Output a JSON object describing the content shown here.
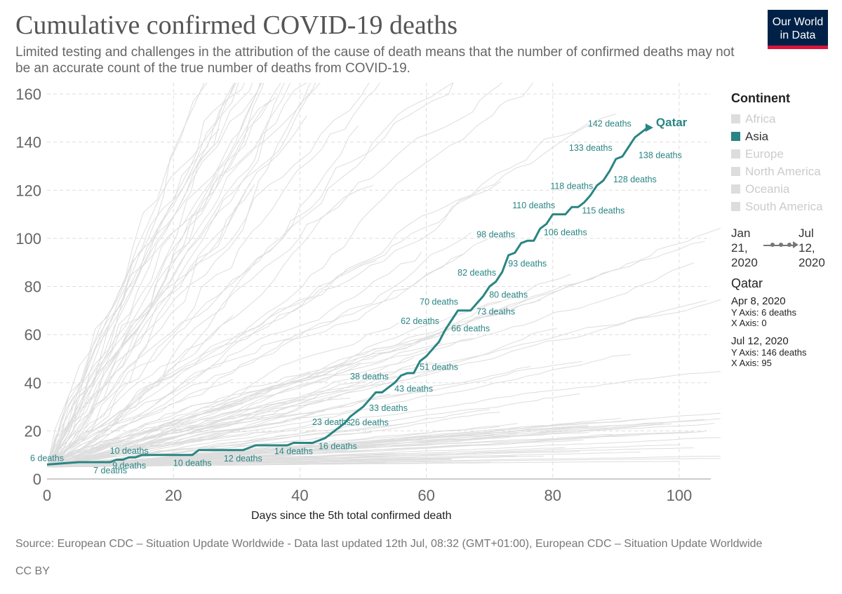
{
  "header": {
    "title": "Cumulative confirmed COVID-19 deaths",
    "subtitle": "Limited testing and challenges in the attribution of the cause of death means that the number of confirmed deaths may not be an accurate count of the true number of deaths from COVID-19.",
    "logo_line1": "Our World",
    "logo_line2": "in Data"
  },
  "legend": {
    "title": "Continent",
    "items": [
      {
        "label": "Africa",
        "active": false
      },
      {
        "label": "Asia",
        "active": true
      },
      {
        "label": "Europe",
        "active": false
      },
      {
        "label": "North America",
        "active": false
      },
      {
        "label": "Oceania",
        "active": false
      },
      {
        "label": "South America",
        "active": false
      }
    ]
  },
  "timeline": {
    "start_line1": "Jan",
    "start_line2": "21,",
    "start_line3": "2020",
    "end_line1": "Jul",
    "end_line2": "12,",
    "end_line3": "2020"
  },
  "info": {
    "entity": "Qatar",
    "first": {
      "date": "Apr 8, 2020",
      "y": "Y Axis: 6 deaths",
      "x": "X Axis: 0"
    },
    "last": {
      "date": "Jul 12, 2020",
      "y": "Y Axis: 146 deaths",
      "x": "X Axis: 95"
    }
  },
  "footer": {
    "source": "Source: European CDC – Situation Update Worldwide - Data last updated 12th Jul, 08:32 (GMT+01:00), European CDC – Situation Update Worldwide",
    "license": "CC BY"
  },
  "colors": {
    "highlight": "#2a8583",
    "background_lines": "#dddddd",
    "grid": "#dddddd",
    "axis_text": "#666666"
  },
  "chart_data": {
    "type": "line",
    "xlabel": "Days since the 5th total confirmed death",
    "ylabel": "",
    "xlim": [
      0,
      105
    ],
    "ylim": [
      0,
      160
    ],
    "x_ticks": [
      0,
      20,
      40,
      60,
      80,
      100
    ],
    "y_ticks": [
      0,
      20,
      40,
      60,
      80,
      100,
      120,
      140,
      160
    ],
    "grid": true,
    "legend_position": "right",
    "highlight_series": {
      "name": "Qatar",
      "points": [
        [
          0,
          6
        ],
        [
          5,
          7
        ],
        [
          10,
          7
        ],
        [
          11,
          8
        ],
        [
          12,
          8
        ],
        [
          13,
          9
        ],
        [
          14,
          9
        ],
        [
          15,
          10
        ],
        [
          20,
          10
        ],
        [
          23,
          10
        ],
        [
          24,
          12
        ],
        [
          31,
          12
        ],
        [
          32,
          13
        ],
        [
          33,
          14
        ],
        [
          38,
          14
        ],
        [
          39,
          15
        ],
        [
          42,
          15
        ],
        [
          43,
          16
        ],
        [
          44,
          17
        ],
        [
          45,
          19
        ],
        [
          46,
          21
        ],
        [
          47,
          23
        ],
        [
          48,
          26
        ],
        [
          49,
          28
        ],
        [
          50,
          30
        ],
        [
          51,
          33
        ],
        [
          52,
          36
        ],
        [
          53,
          36
        ],
        [
          54,
          38
        ],
        [
          55,
          40
        ],
        [
          56,
          43
        ],
        [
          57,
          44
        ],
        [
          58,
          44
        ],
        [
          59,
          49
        ],
        [
          60,
          51
        ],
        [
          61,
          54
        ],
        [
          62,
          57
        ],
        [
          63,
          62
        ],
        [
          64,
          66
        ],
        [
          65,
          70
        ],
        [
          66,
          70
        ],
        [
          67,
          70
        ],
        [
          68,
          73
        ],
        [
          69,
          76
        ],
        [
          70,
          80
        ],
        [
          71,
          82
        ],
        [
          72,
          86
        ],
        [
          73,
          93
        ],
        [
          74,
          94
        ],
        [
          75,
          98
        ],
        [
          76,
          99
        ],
        [
          77,
          99
        ],
        [
          78,
          104
        ],
        [
          79,
          106
        ],
        [
          80,
          110
        ],
        [
          81,
          110
        ],
        [
          82,
          110
        ],
        [
          83,
          113
        ],
        [
          84,
          113
        ],
        [
          85,
          115
        ],
        [
          86,
          118
        ],
        [
          87,
          122
        ],
        [
          88,
          124
        ],
        [
          89,
          128
        ],
        [
          90,
          133
        ],
        [
          91,
          134
        ],
        [
          92,
          138
        ],
        [
          93,
          142
        ],
        [
          94,
          144
        ],
        [
          95,
          146
        ]
      ]
    },
    "point_labels": [
      {
        "x": 0,
        "y": 6,
        "text": "6 deaths",
        "pos": "above"
      },
      {
        "x": 10,
        "y": 7,
        "text": "7 deaths",
        "pos": "below"
      },
      {
        "x": 13,
        "y": 9,
        "text": "9 deaths",
        "pos": "below"
      },
      {
        "x": 13,
        "y": 9,
        "text": "10 deaths",
        "pos": "above"
      },
      {
        "x": 23,
        "y": 10,
        "text": "10 deaths",
        "pos": "below"
      },
      {
        "x": 31,
        "y": 12,
        "text": "12 deaths",
        "pos": "below"
      },
      {
        "x": 39,
        "y": 15,
        "text": "14 deaths",
        "pos": "below"
      },
      {
        "x": 46,
        "y": 17,
        "text": "16 deaths",
        "pos": "below"
      },
      {
        "x": 45,
        "y": 21,
        "text": "23 deaths",
        "pos": "above"
      },
      {
        "x": 51,
        "y": 27,
        "text": "26 deaths",
        "pos": "below"
      },
      {
        "x": 54,
        "y": 33,
        "text": "33 deaths",
        "pos": "below"
      },
      {
        "x": 51,
        "y": 40,
        "text": "38 deaths",
        "pos": "above"
      },
      {
        "x": 58,
        "y": 41,
        "text": "43 deaths",
        "pos": "below"
      },
      {
        "x": 62,
        "y": 50,
        "text": "51 deaths",
        "pos": "below"
      },
      {
        "x": 59,
        "y": 63,
        "text": "62 deaths",
        "pos": "above"
      },
      {
        "x": 67,
        "y": 66,
        "text": "66 deaths",
        "pos": "below"
      },
      {
        "x": 62,
        "y": 71,
        "text": "70 deaths",
        "pos": "above"
      },
      {
        "x": 71,
        "y": 73,
        "text": "73 deaths",
        "pos": "below"
      },
      {
        "x": 68,
        "y": 83,
        "text": "82 deaths",
        "pos": "above"
      },
      {
        "x": 73,
        "y": 80,
        "text": "80 deaths",
        "pos": "below"
      },
      {
        "x": 76,
        "y": 93,
        "text": "93 deaths",
        "pos": "below"
      },
      {
        "x": 71,
        "y": 99,
        "text": "98 deaths",
        "pos": "above"
      },
      {
        "x": 82,
        "y": 106,
        "text": "106 deaths",
        "pos": "below"
      },
      {
        "x": 77,
        "y": 111,
        "text": "110 deaths",
        "pos": "above"
      },
      {
        "x": 88,
        "y": 115,
        "text": "115 deaths",
        "pos": "below"
      },
      {
        "x": 83,
        "y": 119,
        "text": "118 deaths",
        "pos": "above"
      },
      {
        "x": 93,
        "y": 128,
        "text": "128 deaths",
        "pos": "below"
      },
      {
        "x": 86,
        "y": 135,
        "text": "133 deaths",
        "pos": "above"
      },
      {
        "x": 97,
        "y": 138,
        "text": "138 deaths",
        "pos": "below"
      },
      {
        "x": 89,
        "y": 145,
        "text": "142 deaths",
        "pos": "above"
      }
    ],
    "end_label": {
      "x": 95,
      "y": 146,
      "text": "Qatar"
    }
  }
}
